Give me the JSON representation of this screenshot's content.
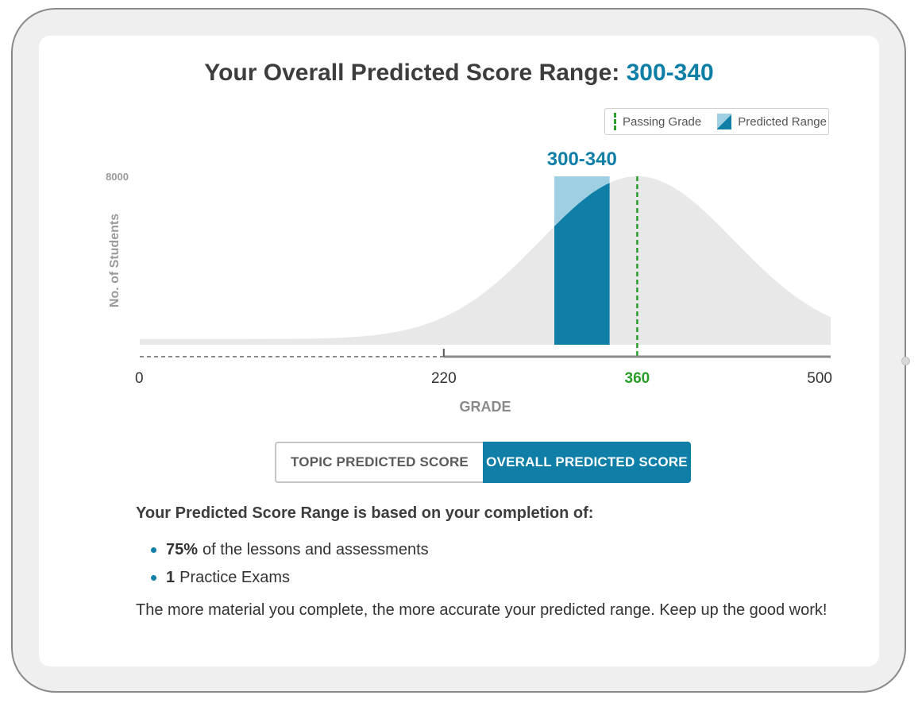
{
  "header": {
    "title_prefix": "Your Overall Predicted Score Range:",
    "title_range": "300-340"
  },
  "legend": {
    "passing_label": "Passing Grade",
    "predicted_label": "Predicted Range"
  },
  "chart_data": {
    "type": "area",
    "ylabel": "No. of Students",
    "xlabel": "GRADE",
    "y_tick_max": "8000",
    "xlim": [
      0,
      500
    ],
    "x_ticks": [
      "0",
      "220",
      "360",
      "500"
    ],
    "distribution_peak_x": 360,
    "passing_grade": 360,
    "predicted_range": {
      "low": 300,
      "high": 340,
      "label": "300-340"
    },
    "previous_range_end": 220,
    "colors": {
      "distribution": "#e8e8e8",
      "range_light": "#9fcfe3",
      "range_dark": "#0f7fa8",
      "passing_line": "#2a9d2a",
      "axis": "#8a8a8a"
    }
  },
  "toggle": {
    "topic_label": "TOPIC PREDICTED SCORE",
    "overall_label": "OVERALL PREDICTED SCORE",
    "selected": "overall"
  },
  "basis": {
    "heading": "Your Predicted Score Range is based on your completion of:",
    "items": [
      {
        "value": "75%",
        "text": "of the lessons and assessments"
      },
      {
        "value": "1",
        "text": "Practice Exams"
      }
    ],
    "encouragement": "The more material you complete, the more accurate your predicted range. Keep up the good work!"
  }
}
